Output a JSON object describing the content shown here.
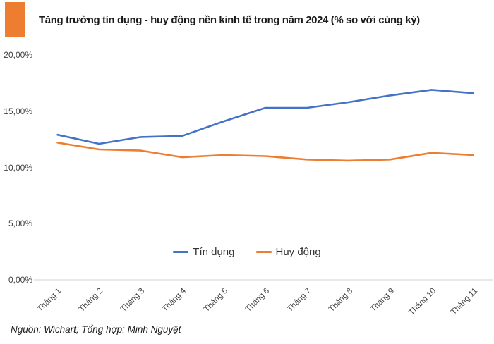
{
  "header": {
    "title": "Tăng trưởng tín dụng - huy động nền kinh tế trong năm 2024 (% so với cùng kỳ)"
  },
  "footer": {
    "source": "Nguồn: Wichart; Tổng hợp: Minh Nguyệt"
  },
  "colors": {
    "accent": "#ED7D31",
    "axis_line": "#D9D9D9",
    "tick_text": "#3F3F3F",
    "title_text": "#1B1B1B"
  },
  "chart_data": {
    "type": "line",
    "title": "Tăng trưởng tín dụng - huy động nền kinh tế trong năm 2024 (% so với cùng kỳ)",
    "categories": [
      "Tháng 1",
      "Tháng 2",
      "Tháng 3",
      "Tháng 4",
      "Tháng 5",
      "Tháng 6",
      "Tháng 7",
      "Tháng 8",
      "Tháng 9",
      "Tháng 10",
      "Tháng 11"
    ],
    "series": [
      {
        "name": "Tín dụng",
        "color": "#4472C4",
        "values": [
          12.9,
          12.1,
          12.7,
          12.8,
          14.1,
          15.3,
          15.3,
          15.8,
          16.4,
          16.9,
          16.6
        ]
      },
      {
        "name": "Huy động",
        "color": "#ED7D31",
        "values": [
          12.2,
          11.6,
          11.5,
          10.9,
          11.1,
          11.0,
          10.7,
          10.6,
          10.7,
          11.3,
          11.1
        ]
      }
    ],
    "ylabel": "",
    "xlabel": "",
    "ylim": [
      0,
      20
    ],
    "yticks": [
      {
        "value": 0,
        "label": "0,00%"
      },
      {
        "value": 5,
        "label": "5,00%"
      },
      {
        "value": 10,
        "label": "10,00%"
      },
      {
        "value": 15,
        "label": "15,00%"
      },
      {
        "value": 20,
        "label": "20,00%"
      }
    ],
    "grid": false,
    "legend_position": "bottom-center",
    "unit": "%"
  }
}
